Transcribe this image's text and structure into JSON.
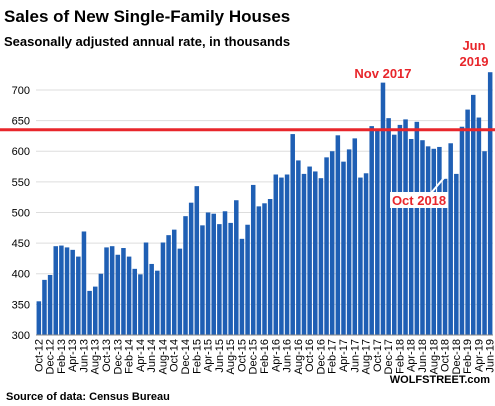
{
  "chart_data": {
    "type": "bar",
    "title": "Sales of New Single-Family Houses",
    "subtitle": "Seasonally adjusted annual rate, in thousands",
    "source": "Source of data: Census Bureau",
    "watermark": "WOLFSTREET.com",
    "categories": [
      "Oct-12",
      null,
      "Dec-12",
      null,
      "Feb-13",
      null,
      "Apr-13",
      null,
      "Jun-13",
      null,
      "Aug-13",
      null,
      "Oct-13",
      null,
      "Dec-13",
      null,
      "Feb-14",
      null,
      "Apr-14",
      null,
      "Jun-14",
      null,
      "Aug-14",
      null,
      "Oct-14",
      null,
      "Dec-14",
      null,
      "Feb-15",
      null,
      "Apr-15",
      null,
      "Jun-15",
      null,
      "Aug-15",
      null,
      "Oct-15",
      null,
      "Dec-15",
      null,
      "Feb-16",
      null,
      "Apr-16",
      null,
      "Jun-16",
      null,
      "Aug-16",
      null,
      "Oct-16",
      null,
      "Dec-16",
      null,
      "Feb-17",
      null,
      "Apr-17",
      null,
      "Jun-17",
      null,
      "Aug-17",
      null,
      "Oct-17",
      null,
      "Dec-17",
      null,
      "Feb-18",
      null,
      "Apr-18",
      null,
      "Jun-18",
      null,
      "Aug-18",
      null,
      "Oct-18",
      null,
      "Dec-18",
      null,
      "Feb-19",
      null,
      "Apr-19",
      null,
      "Jun-19"
    ],
    "values": [
      355,
      390,
      398,
      445,
      446,
      443,
      439,
      428,
      469,
      372,
      379,
      400,
      443,
      445,
      431,
      442,
      428,
      408,
      399,
      451,
      416,
      405,
      451,
      463,
      472,
      441,
      494,
      516,
      543,
      479,
      500,
      498,
      481,
      502,
      483,
      520,
      457,
      480,
      545,
      510,
      515,
      522,
      562,
      557,
      562,
      628,
      585,
      563,
      575,
      567,
      556,
      590,
      600,
      626,
      583,
      603,
      621,
      557,
      564,
      641,
      635,
      712,
      654,
      627,
      643,
      652,
      620,
      648,
      618,
      608,
      604,
      607,
      555,
      613,
      563,
      640,
      668,
      692,
      655,
      600,
      729
    ],
    "color": "#1f5fb4",
    "ylim": [
      300,
      730
    ],
    "yticks": [
      300,
      350,
      400,
      450,
      500,
      550,
      600,
      650,
      700
    ],
    "reference_line": 635,
    "reference_color": "#e8262b",
    "annotations": [
      {
        "text": "Nov 2017",
        "index": 61
      },
      {
        "text": "Oct 2018",
        "index": 72
      },
      {
        "text": "Jun",
        "index": 80
      },
      {
        "text": "2019",
        "index": 80
      }
    ]
  }
}
